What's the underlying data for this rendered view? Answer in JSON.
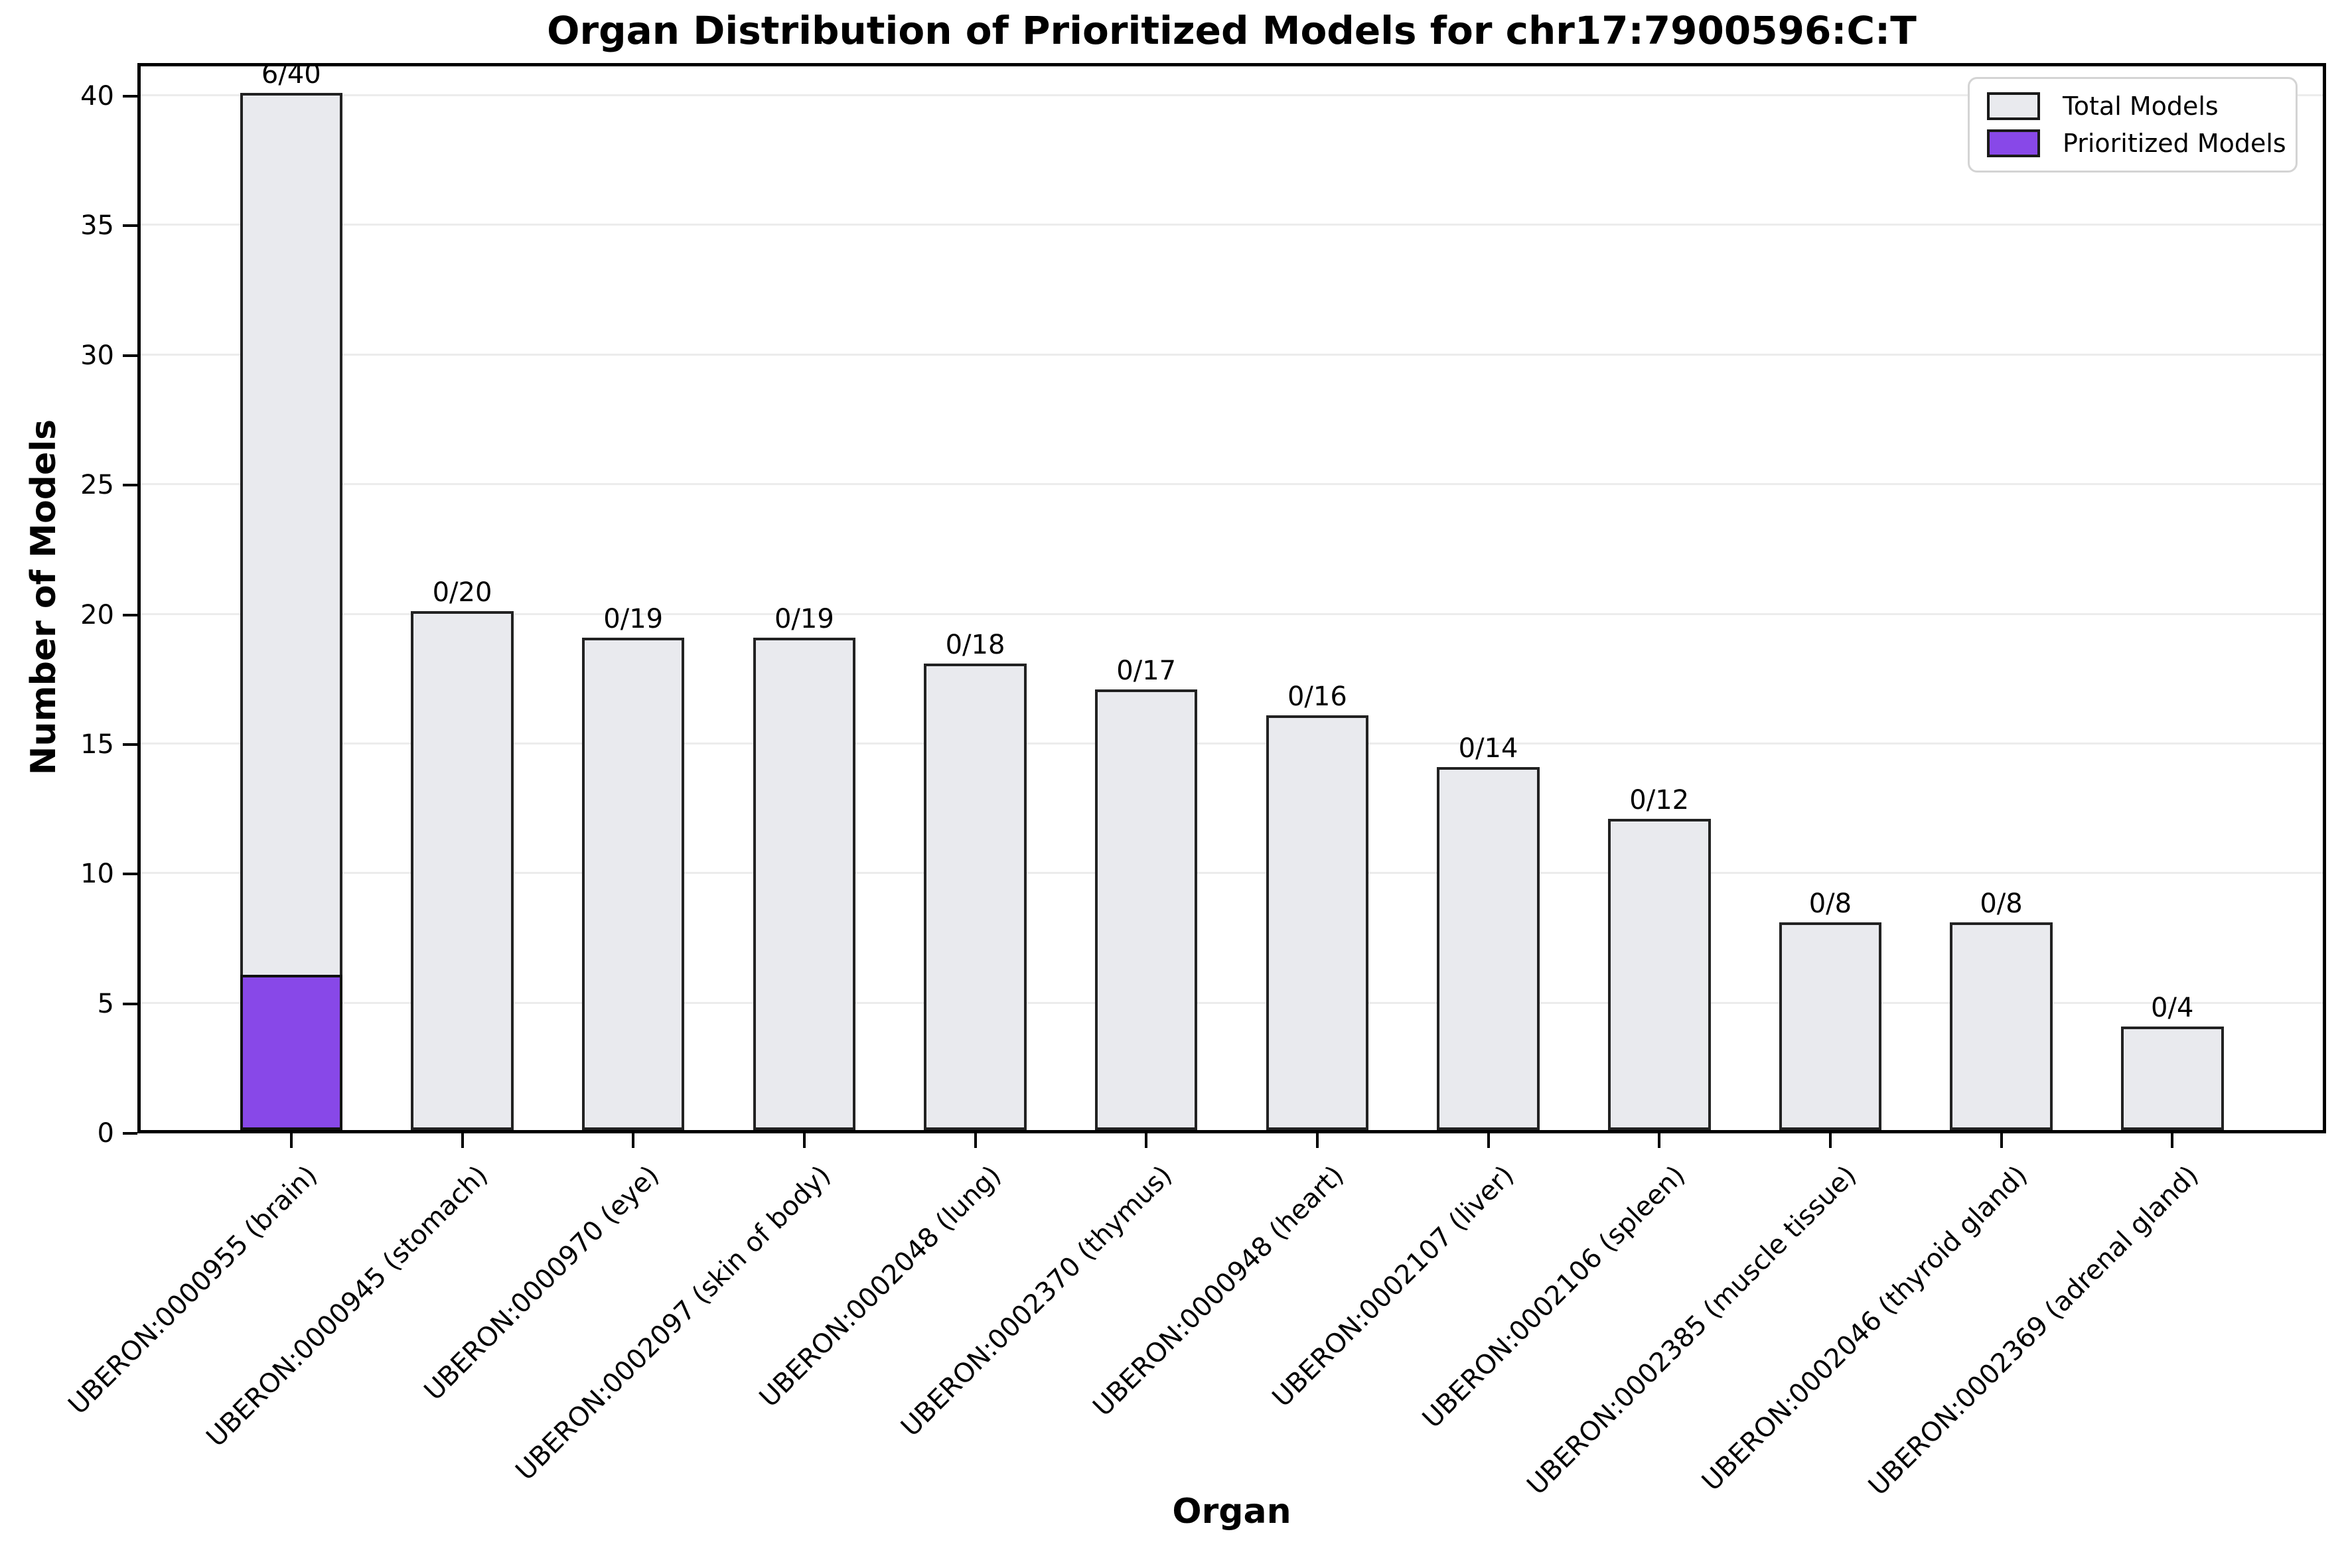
{
  "title": "Organ Distribution of Prioritized Models for chr17:7900596:C:T",
  "axes": {
    "x_label": "Organ",
    "y_label": "Number of Models",
    "y_ticks": [
      0,
      5,
      10,
      15,
      20,
      25,
      30,
      35,
      40
    ]
  },
  "legend": {
    "total_label": "Total Models",
    "prioritized_label": "Prioritized Models"
  },
  "colors": {
    "total_fill": "#e9eaee",
    "prioritized_fill": "#8848e8",
    "bar_edge": "#222222",
    "gridline": "#ececec",
    "spine": "#000000",
    "legend_border": "#d4d4d4"
  },
  "chart_data": {
    "type": "bar",
    "title": "Organ Distribution of Prioritized Models for chr17:7900596:C:T",
    "xlabel": "Organ",
    "ylabel": "Number of Models",
    "ylim": [
      0,
      42
    ],
    "grid": "horizontal",
    "legend_position": "upper right",
    "categories": [
      "UBERON:0000955 (brain)",
      "UBERON:0000945 (stomach)",
      "UBERON:0000970 (eye)",
      "UBERON:0002097 (skin of body)",
      "UBERON:0002048 (lung)",
      "UBERON:0002370 (thymus)",
      "UBERON:0000948 (heart)",
      "UBERON:0002107 (liver)",
      "UBERON:0002106 (spleen)",
      "UBERON:0002385 (muscle tissue)",
      "UBERON:0002046 (thyroid gland)",
      "UBERON:0002369 (adrenal gland)"
    ],
    "series": [
      {
        "name": "Total Models",
        "values": [
          40,
          20,
          19,
          19,
          18,
          17,
          16,
          14,
          12,
          8,
          8,
          4
        ]
      },
      {
        "name": "Prioritized Models",
        "values": [
          6,
          0,
          0,
          0,
          0,
          0,
          0,
          0,
          0,
          0,
          0,
          0
        ]
      }
    ],
    "bar_labels": [
      "6/40",
      "0/20",
      "0/19",
      "0/19",
      "0/18",
      "0/17",
      "0/16",
      "0/14",
      "0/12",
      "0/8",
      "0/8",
      "0/4"
    ]
  }
}
